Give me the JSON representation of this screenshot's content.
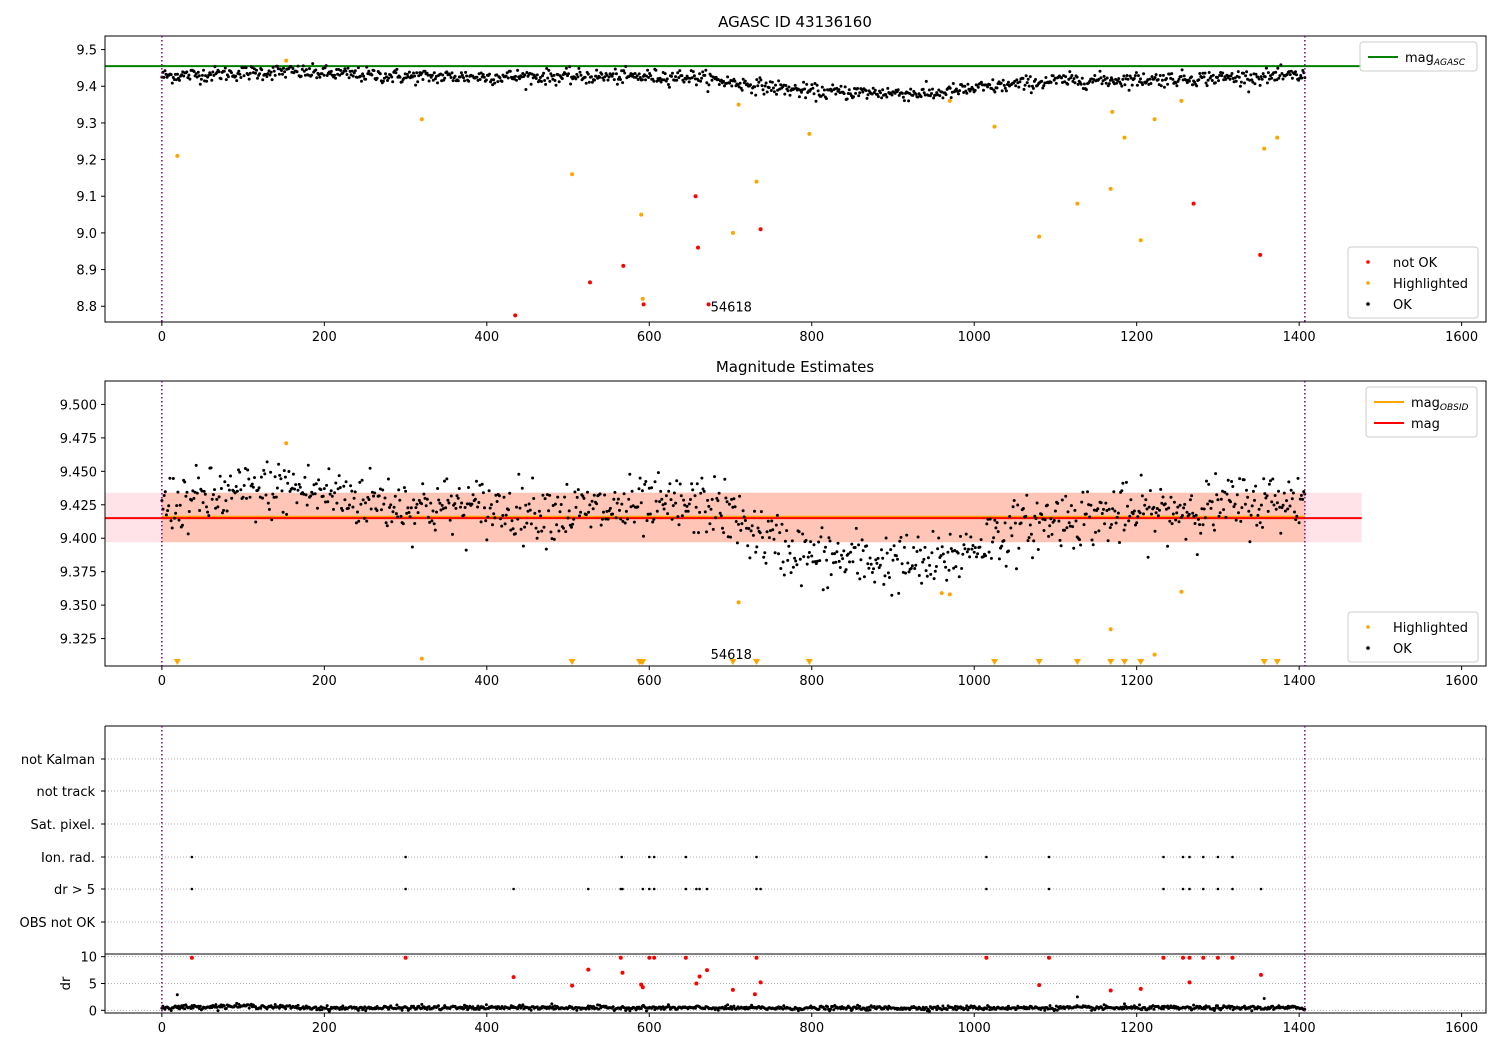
{
  "chart_data": [
    {
      "type": "scatter",
      "title": "AGASC ID 43136160",
      "xlabel": "",
      "ylabel": "",
      "xlim": [
        -70,
        1630
      ],
      "ylim": [
        8.757,
        9.537
      ],
      "xticks": [
        0,
        200,
        400,
        600,
        800,
        1000,
        1200,
        1400,
        1600
      ],
      "xtick_labels": [
        "0",
        "200",
        "400",
        "600",
        "800",
        "1000",
        "1200",
        "1400",
        "1600"
      ],
      "yticks": [
        8.8,
        8.9,
        9.0,
        9.1,
        9.2,
        9.3,
        9.4,
        9.5
      ],
      "ytick_labels": [
        "8.8",
        "8.9",
        "9.0",
        "9.1",
        "9.2",
        "9.3",
        "9.4",
        "9.5"
      ],
      "vlines": [
        0,
        1407
      ],
      "hline": {
        "name": "mag_AGASC",
        "y": 9.455,
        "color": "#008000"
      },
      "annotation": {
        "text": "54618",
        "x": 673,
        "y": 8.78
      },
      "legend_top": [
        {
          "label": "mag",
          "sub": "AGASC",
          "color": "#008000",
          "kind": "line"
        }
      ],
      "legend_bottom": [
        {
          "label": "not OK",
          "color": "#ff0000",
          "kind": "dot"
        },
        {
          "label": "Highlighted",
          "color": "#ffa500",
          "kind": "dot"
        },
        {
          "label": "OK",
          "color": "#000000",
          "kind": "dot"
        }
      ],
      "series": [
        {
          "name": "OK",
          "color": "#000000",
          "ok_trend": [
            [
              0,
              9.428
            ],
            [
              150,
              9.44
            ],
            [
              300,
              9.426
            ],
            [
              450,
              9.426
            ],
            [
              650,
              9.426
            ],
            [
              720,
              9.405
            ],
            [
              800,
              9.385
            ],
            [
              950,
              9.38
            ],
            [
              1020,
              9.398
            ],
            [
              1100,
              9.415
            ],
            [
              1200,
              9.418
            ],
            [
              1407,
              9.428
            ]
          ],
          "noise": 0.01
        },
        {
          "name": "Highlighted",
          "color": "#ffa500",
          "points": [
            [
              19,
              9.21
            ],
            [
              153,
              9.47
            ],
            [
              320,
              9.31
            ],
            [
              505,
              9.16
            ],
            [
              590,
              9.05
            ],
            [
              592,
              8.82
            ],
            [
              703,
              9.0
            ],
            [
              710,
              9.35
            ],
            [
              732,
              9.14
            ],
            [
              797,
              9.27
            ],
            [
              970,
              9.36
            ],
            [
              1025,
              9.29
            ],
            [
              1080,
              8.99
            ],
            [
              1127,
              9.08
            ],
            [
              1168,
              9.12
            ],
            [
              1170,
              9.33
            ],
            [
              1185,
              9.26
            ],
            [
              1205,
              8.98
            ],
            [
              1222,
              9.31
            ],
            [
              1255,
              9.36
            ],
            [
              1357,
              9.23
            ],
            [
              1373,
              9.26
            ]
          ]
        },
        {
          "name": "not OK",
          "color": "#ff0000",
          "points": [
            [
              435,
              8.775
            ],
            [
              527,
              8.865
            ],
            [
              568,
              8.91
            ],
            [
              593,
              8.805
            ],
            [
              657,
              9.1
            ],
            [
              660,
              8.96
            ],
            [
              673,
              8.805
            ],
            [
              737,
              9.01
            ],
            [
              1270,
              9.08
            ],
            [
              1352,
              8.94
            ]
          ]
        }
      ]
    },
    {
      "type": "scatter",
      "title": "Magnitude Estimates",
      "xlabel": "",
      "ylabel": "",
      "xlim": [
        -70,
        1630
      ],
      "ylim": [
        9.3045,
        9.5175
      ],
      "xticks": [
        0,
        200,
        400,
        600,
        800,
        1000,
        1200,
        1400,
        1600
      ],
      "xtick_labels": [
        "0",
        "200",
        "400",
        "600",
        "800",
        "1000",
        "1200",
        "1400",
        "1600"
      ],
      "yticks": [
        9.325,
        9.35,
        9.375,
        9.4,
        9.425,
        9.45,
        9.475,
        9.5
      ],
      "ytick_labels": [
        "9.325",
        "9.350",
        "9.375",
        "9.400",
        "9.425",
        "9.450",
        "9.475",
        "9.500"
      ],
      "vlines": [
        0,
        1407
      ],
      "lines": [
        {
          "name": "mag_OBSID",
          "y": 9.416,
          "x": [
            0,
            1407
          ],
          "color": "#ffa500"
        },
        {
          "name": "mag",
          "y": 9.415,
          "x": [
            -70,
            1477
          ],
          "color": "#ff0000"
        }
      ],
      "bands": [
        {
          "y": [
            9.397,
            9.434
          ],
          "x": [
            -70,
            1477
          ],
          "color": "#ffc0cb",
          "alpha": 0.45
        },
        {
          "y": [
            9.397,
            9.434
          ],
          "x": [
            0,
            1407
          ],
          "color": "#ffa07a",
          "alpha": 0.45
        }
      ],
      "annotation": {
        "text": "54618",
        "x": 673,
        "y": 9.312
      },
      "legend_top": [
        {
          "label": "mag",
          "sub": "OBSID",
          "color": "#ffa500",
          "kind": "line"
        },
        {
          "label": "mag",
          "sub": "",
          "color": "#ff0000",
          "kind": "line"
        }
      ],
      "legend_bottom": [
        {
          "label": "Highlighted",
          "color": "#ffa500",
          "kind": "dot"
        },
        {
          "label": "OK",
          "color": "#000000",
          "kind": "dot"
        }
      ],
      "series": [
        {
          "name": "OK",
          "color": "#000000",
          "ok_trend": [
            [
              0,
              9.425
            ],
            [
              150,
              9.438
            ],
            [
              300,
              9.425
            ],
            [
              500,
              9.42
            ],
            [
              680,
              9.425
            ],
            [
              740,
              9.4
            ],
            [
              800,
              9.386
            ],
            [
              950,
              9.38
            ],
            [
              1020,
              9.4
            ],
            [
              1100,
              9.415
            ],
            [
              1200,
              9.418
            ],
            [
              1407,
              9.43
            ]
          ],
          "noise": 0.011
        },
        {
          "name": "Highlighted",
          "color": "#ffa500",
          "points": [
            [
              153,
              9.471
            ],
            [
              320,
              9.31
            ],
            [
              710,
              9.352
            ],
            [
              960,
              9.359
            ],
            [
              970,
              9.358
            ],
            [
              1168,
              9.332
            ],
            [
              1222,
              9.313
            ],
            [
              1255,
              9.36
            ]
          ]
        },
        {
          "name": "Highlighted (off-scale)",
          "color": "#ffa500",
          "marker": "triangle-down",
          "points": [
            [
              19,
              9.3075
            ],
            [
              505,
              9.3075
            ],
            [
              588,
              9.3075
            ],
            [
              590,
              9.3075
            ],
            [
              592,
              9.3075
            ],
            [
              703,
              9.3075
            ],
            [
              732,
              9.3075
            ],
            [
              797,
              9.3075
            ],
            [
              1025,
              9.3075
            ],
            [
              1080,
              9.3075
            ],
            [
              1127,
              9.3075
            ],
            [
              1168,
              9.3075
            ],
            [
              1185,
              9.3075
            ],
            [
              1205,
              9.3075
            ],
            [
              1357,
              9.3075
            ],
            [
              1373,
              9.3075
            ]
          ]
        }
      ]
    },
    {
      "type": "scatter",
      "title": "",
      "xlabel": "",
      "ylabel": "",
      "xlim": [
        -70,
        1630
      ],
      "categories": [
        "not Kalman",
        "not track",
        "Sat. pixel.",
        "Ion. rad.",
        "dr > 5",
        "OBS not OK"
      ],
      "flags": {
        "Ion. rad.": [
          37,
          300,
          566,
          600,
          606,
          645,
          732,
          1015,
          1092,
          1233,
          1257,
          1265,
          1282,
          1300,
          1318
        ],
        "dr > 5": [
          37,
          300,
          433,
          525,
          565,
          567,
          592,
          600,
          606,
          645,
          658,
          662,
          671,
          732,
          737,
          1015,
          1092,
          1233,
          1257,
          1265,
          1282,
          1300,
          1318,
          1353
        ]
      },
      "vlines": [
        0,
        1407
      ]
    },
    {
      "type": "scatter",
      "title": "",
      "xlabel": "",
      "ylabel": "dr",
      "xlim": [
        -70,
        1630
      ],
      "ylim": [
        -0.5,
        10.5
      ],
      "xticks": [
        0,
        200,
        400,
        600,
        800,
        1000,
        1200,
        1400,
        1600
      ],
      "xtick_labels": [
        "0",
        "200",
        "400",
        "600",
        "800",
        "1000",
        "1200",
        "1400",
        "1600"
      ],
      "yticks": [
        0,
        5,
        10
      ],
      "ytick_labels": [
        "0",
        "5",
        "10"
      ],
      "vlines": [
        0,
        1407
      ],
      "series": [
        {
          "name": "OK",
          "color": "#000000",
          "ok_trend": [
            [
              0,
              0.5
            ],
            [
              100,
              0.8
            ],
            [
              200,
              0.4
            ],
            [
              400,
              0.5
            ],
            [
              800,
              0.4
            ],
            [
              1000,
              0.45
            ],
            [
              1407,
              0.45
            ]
          ],
          "noise": 0.2,
          "extra": [
            [
              19,
              2.9
            ],
            [
              320,
              1.1
            ],
            [
              480,
              1.2
            ],
            [
              1127,
              2.5
            ],
            [
              1185,
              1.2
            ],
            [
              1357,
              2.2
            ]
          ]
        },
        {
          "name": "not OK",
          "color": "#ff0000",
          "points": [
            [
              37,
              9.8
            ],
            [
              300,
              9.8
            ],
            [
              433,
              6.2
            ],
            [
              505,
              4.6
            ],
            [
              525,
              7.6
            ],
            [
              565,
              9.8
            ],
            [
              567,
              7.0
            ],
            [
              590,
              4.8
            ],
            [
              592,
              4.3
            ],
            [
              600,
              9.8
            ],
            [
              606,
              9.8
            ],
            [
              645,
              9.8
            ],
            [
              658,
              5.0
            ],
            [
              662,
              6.3
            ],
            [
              671,
              7.5
            ],
            [
              703,
              3.8
            ],
            [
              732,
              9.8
            ],
            [
              737,
              5.2
            ],
            [
              730,
              3.0
            ],
            [
              1015,
              9.8
            ],
            [
              1080,
              4.7
            ],
            [
              1092,
              9.8
            ],
            [
              1168,
              3.7
            ],
            [
              1205,
              4.0
            ],
            [
              1233,
              9.8
            ],
            [
              1257,
              9.8
            ],
            [
              1265,
              5.2
            ],
            [
              1265,
              9.8
            ],
            [
              1282,
              9.8
            ],
            [
              1300,
              9.8
            ],
            [
              1318,
              9.8
            ],
            [
              1353,
              6.6
            ]
          ]
        }
      ]
    }
  ]
}
